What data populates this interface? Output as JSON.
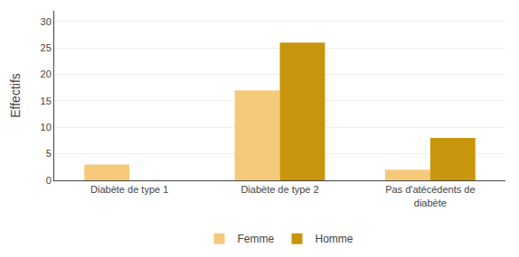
{
  "chart_data": {
    "type": "bar",
    "categories": [
      "Diabète de type 1",
      "Diabète de type 2",
      "Pas d'atécédents de\ndiabète"
    ],
    "series": [
      {
        "name": "Femme",
        "color": "#F5C97A",
        "values": [
          3,
          17,
          2
        ]
      },
      {
        "name": "Homme",
        "color": "#C8960C",
        "values": [
          0,
          26,
          8
        ]
      }
    ],
    "ylabel": "Effectifs",
    "ylim": [
      0,
      32
    ],
    "yticks": [
      0,
      5,
      10,
      15,
      20,
      25,
      30
    ],
    "grid": true,
    "legend": "bottom"
  }
}
